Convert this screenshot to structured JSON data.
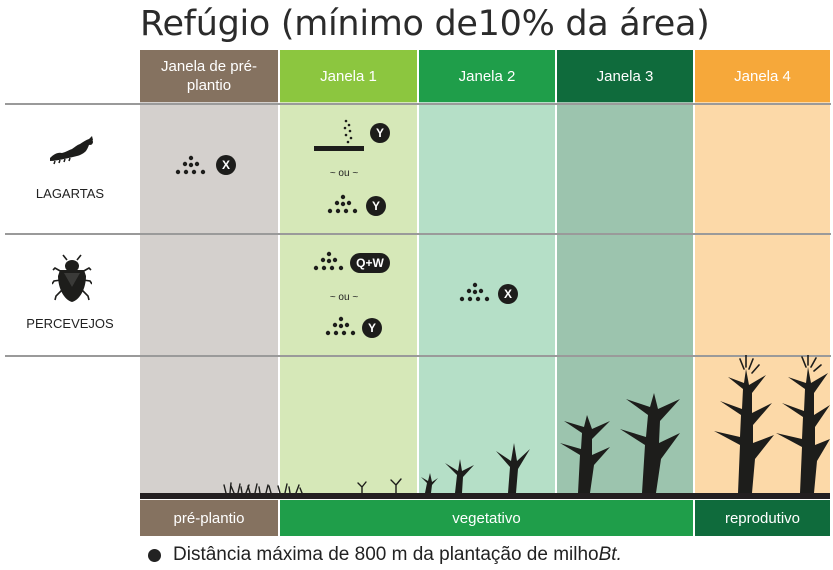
{
  "title": "Refúgio (mínimo de10% da área)",
  "columns": [
    {
      "label": "Janela de pré-plantio",
      "header_color": "#857260",
      "body_color": "#d4d0cd"
    },
    {
      "label": "Janela 1",
      "header_color": "#8cc63f",
      "body_color": "#d6e8b8"
    },
    {
      "label": "Janela 2",
      "header_color": "#1f9e4a",
      "body_color": "#b5dfc7"
    },
    {
      "label": "Janela 3",
      "header_color": "#0f6b3c",
      "body_color": "#9cc4ae"
    },
    {
      "label": "Janela 4",
      "header_color": "#f6a83a",
      "body_color": "#fcd9a8"
    }
  ],
  "pests": [
    {
      "label": "LAGARTAS",
      "icon": "caterpillar-icon"
    },
    {
      "label": "PERCEVEJOS",
      "icon": "stink-bug-icon"
    }
  ],
  "treatments": {
    "lagartas_preplantio": "X",
    "lagartas_janela1_soil": "Y",
    "lagartas_janela1_or": "~ ou ~",
    "lagartas_janela1_spray": "Y",
    "percevejos_janela1_a": "Q+W",
    "percevejos_janela1_or": "~ ou ~",
    "percevejos_janela1_b": "Y",
    "percevejos_janela2": "X"
  },
  "stages": [
    {
      "label": "pré-plantio",
      "color": "#857260"
    },
    {
      "label": "vegetativo",
      "color": "#1f9e4a"
    },
    {
      "label": "reprodutivo",
      "color": "#0f6b3c"
    }
  ],
  "footer": {
    "text": "Distância máxima de 800 m da plantação de milho ",
    "italic": "Bt."
  }
}
